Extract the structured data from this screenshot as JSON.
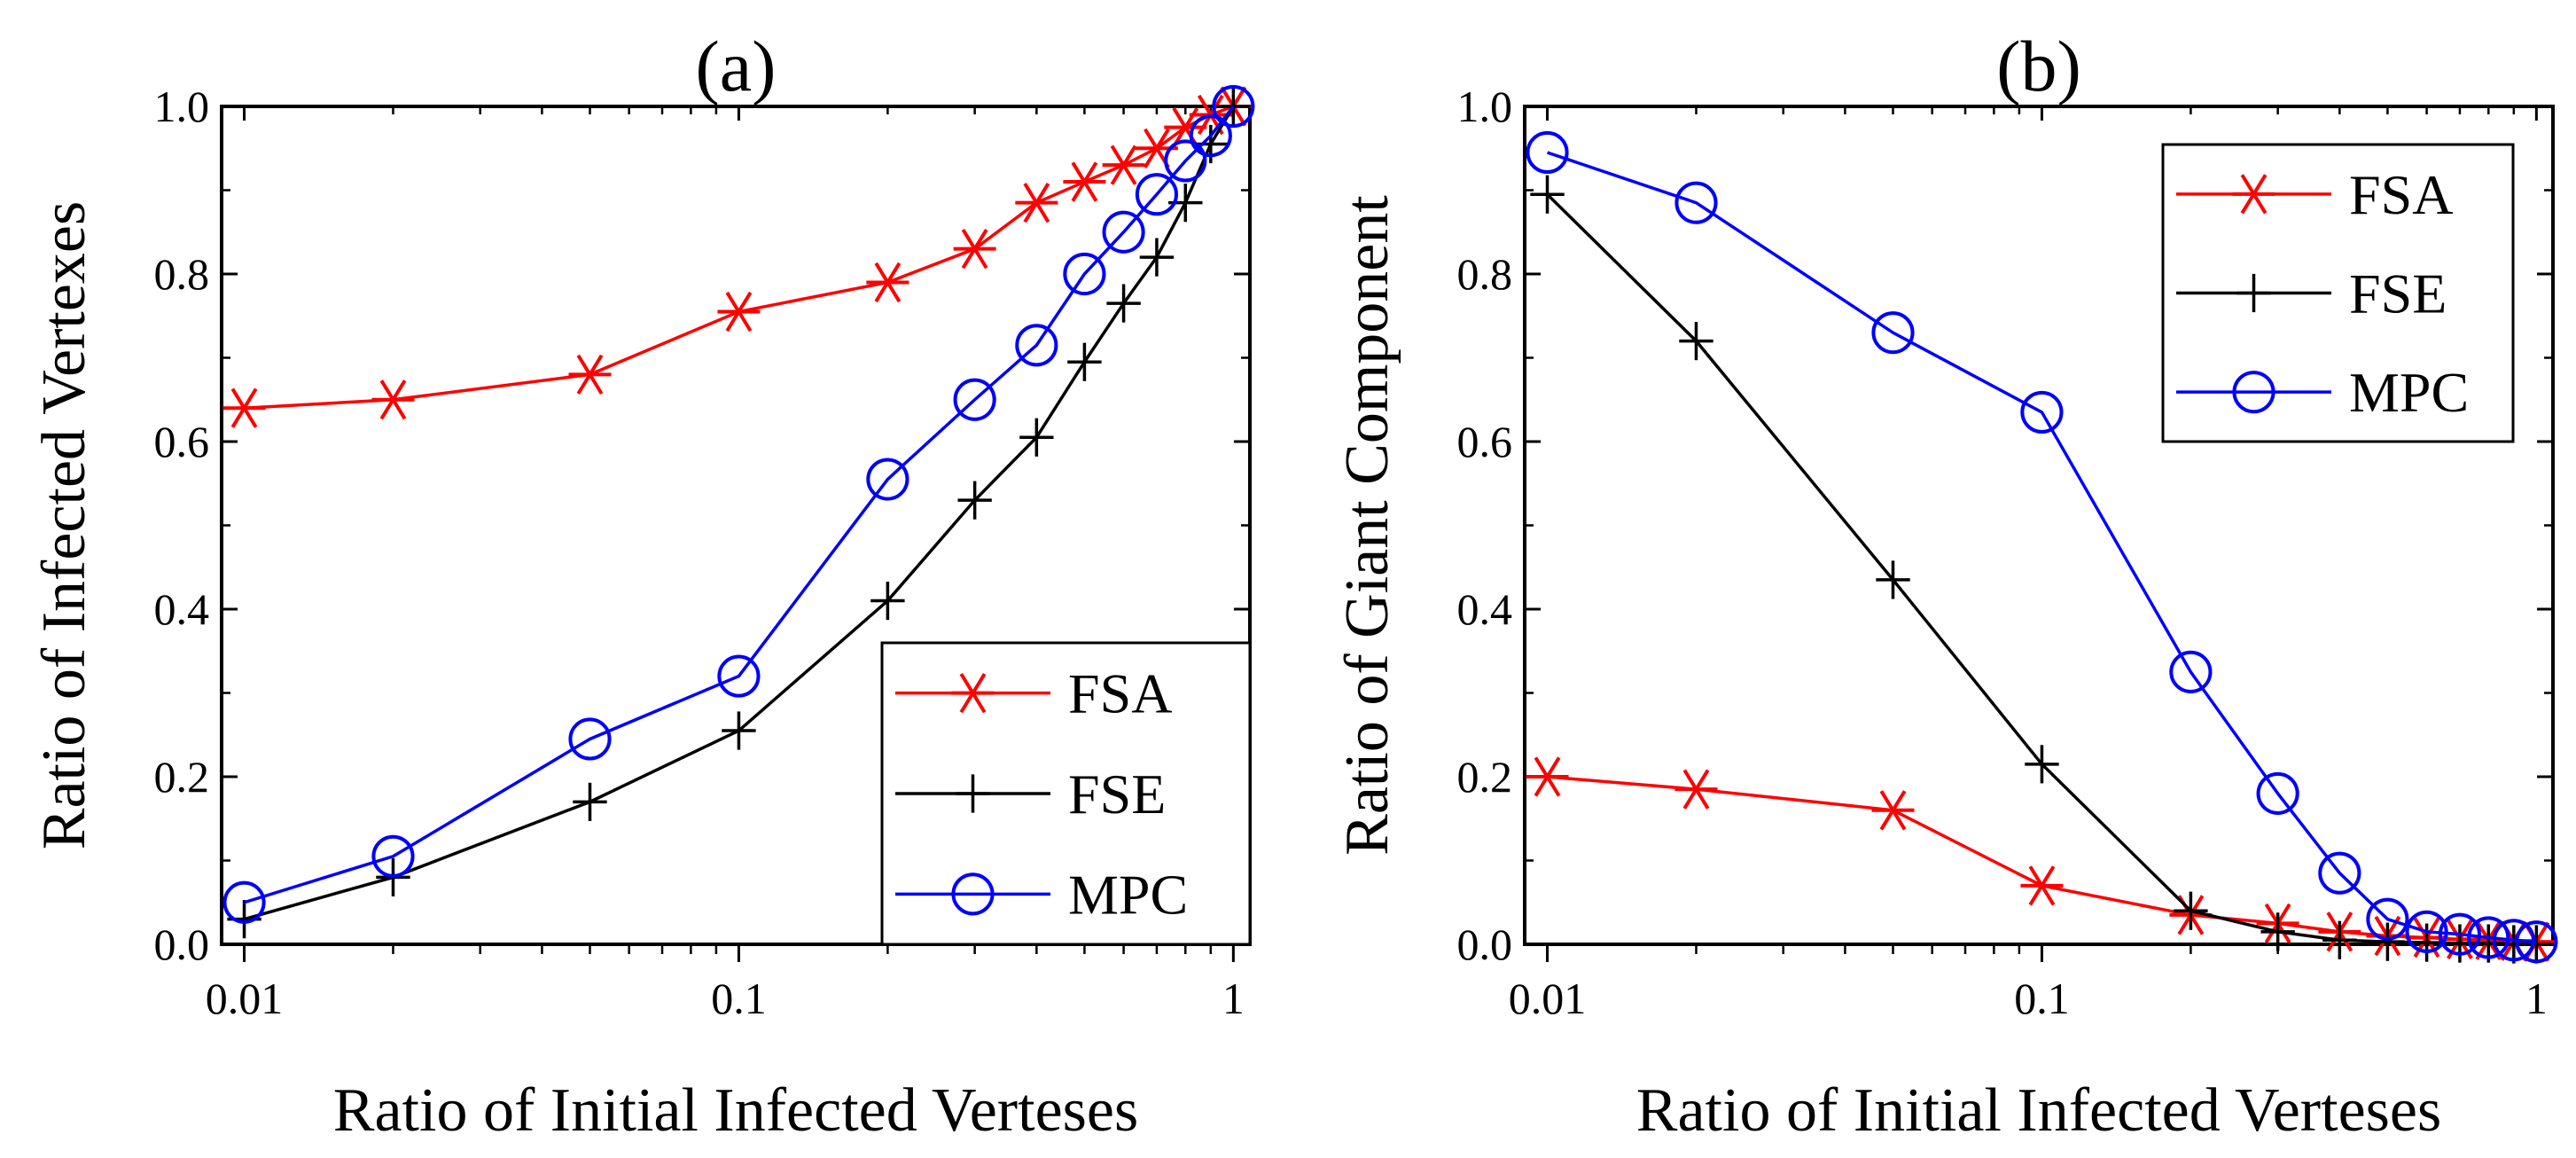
{
  "chart_data": [
    {
      "type": "line",
      "title": "(a)",
      "xlabel": "Ratio of Initial Infected Verteses",
      "ylabel": "Ratio of Infected Vertexes",
      "xscale": "log",
      "xlim": [
        0.009,
        1.08
      ],
      "ylim": [
        0,
        1.0
      ],
      "xticks": [
        0.01,
        0.1,
        1
      ],
      "xtick_labels": [
        "0.01",
        "0.1",
        "1"
      ],
      "yticks": [
        0,
        0.2,
        0.4,
        0.6,
        0.8,
        1.0
      ],
      "ytick_labels": [
        "0.0",
        "0.2",
        "0.4",
        "0.6",
        "0.8",
        "1.0"
      ],
      "legend_position": "bottom-right",
      "x": [
        0.01,
        0.02,
        0.05,
        0.1,
        0.2,
        0.3,
        0.4,
        0.5,
        0.6,
        0.7,
        0.8,
        0.9,
        1.0
      ],
      "series": [
        {
          "name": "FSA",
          "color": "#ff0000",
          "marker": "star",
          "values": [
            0.64,
            0.65,
            0.68,
            0.755,
            0.79,
            0.83,
            0.885,
            0.91,
            0.93,
            0.95,
            0.975,
            0.99,
            1.0
          ]
        },
        {
          "name": "FSE",
          "color": "#000000",
          "marker": "plus",
          "values": [
            0.03,
            0.08,
            0.17,
            0.255,
            0.41,
            0.53,
            0.605,
            0.695,
            0.765,
            0.82,
            0.885,
            0.955,
            1.0
          ]
        },
        {
          "name": "MPC",
          "color": "#0000ff",
          "marker": "circle",
          "values": [
            0.05,
            0.105,
            0.245,
            0.32,
            0.555,
            0.65,
            0.715,
            0.8,
            0.85,
            0.895,
            0.935,
            0.965,
            1.0
          ]
        }
      ]
    },
    {
      "type": "line",
      "title": "(b)",
      "xlabel": "Ratio of Initial Infected Verteses",
      "ylabel": "Ratio of Giant Component",
      "xscale": "log",
      "xlim": [
        0.009,
        1.08
      ],
      "ylim": [
        0,
        1.0
      ],
      "xticks": [
        0.01,
        0.1,
        1
      ],
      "xtick_labels": [
        "0.01",
        "0.1",
        "1"
      ],
      "yticks": [
        0,
        0.2,
        0.4,
        0.6,
        0.8,
        1.0
      ],
      "ytick_labels": [
        "0.0",
        "0.2",
        "0.4",
        "0.6",
        "0.8",
        "1.0"
      ],
      "legend_position": "top-right",
      "x": [
        0.01,
        0.02,
        0.05,
        0.1,
        0.2,
        0.3,
        0.4,
        0.5,
        0.6,
        0.7,
        0.8,
        0.9,
        1.0
      ],
      "series": [
        {
          "name": "FSA",
          "color": "#ff0000",
          "marker": "star",
          "values": [
            0.2,
            0.185,
            0.16,
            0.07,
            0.035,
            0.025,
            0.015,
            0.01,
            0.008,
            0.006,
            0.005,
            0.004,
            0.003
          ]
        },
        {
          "name": "FSE",
          "color": "#000000",
          "marker": "plus",
          "values": [
            0.895,
            0.72,
            0.435,
            0.215,
            0.04,
            0.015,
            0.005,
            0.003,
            0.002,
            0.001,
            0.001,
            0.0,
            0.0
          ]
        },
        {
          "name": "MPC",
          "color": "#0000ff",
          "marker": "circle",
          "values": [
            0.945,
            0.885,
            0.73,
            0.635,
            0.325,
            0.18,
            0.085,
            0.03,
            0.015,
            0.012,
            0.008,
            0.005,
            0.003
          ]
        }
      ]
    }
  ]
}
